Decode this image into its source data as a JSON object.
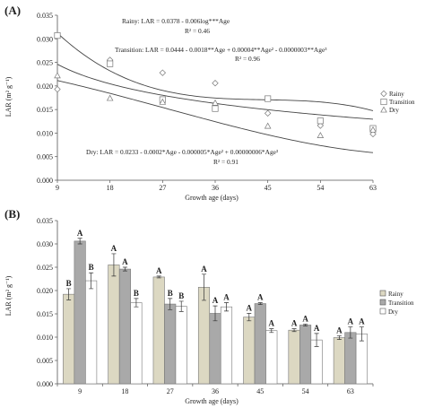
{
  "chart_data": [
    {
      "type": "scatter",
      "panel_label": "(A)",
      "xlabel": "Growth age (days)",
      "ylabel": "LAR (m² g⁻¹)",
      "x_ticks": [
        "9",
        "18",
        "27",
        "36",
        "45",
        "54",
        "63"
      ],
      "y_ticks": [
        "0.000",
        "0.005",
        "0.010",
        "0.015",
        "0.020",
        "0.025",
        "0.030",
        "0.035"
      ],
      "xlim": [
        9,
        63
      ],
      "ylim": [
        0,
        0.035
      ],
      "legend_position": "right",
      "series": [
        {
          "name": "Rainy",
          "marker": "diamond",
          "x": [
            9,
            18,
            27,
            36,
            45,
            54,
            63
          ],
          "values": [
            0.0193,
            0.0255,
            0.0228,
            0.0206,
            0.0142,
            0.0116,
            0.0098
          ]
        },
        {
          "name": "Transition",
          "marker": "square",
          "x": [
            9,
            18,
            27,
            36,
            45,
            54,
            63
          ],
          "values": [
            0.0307,
            0.0247,
            0.0171,
            0.0152,
            0.0173,
            0.0126,
            0.011
          ]
        },
        {
          "name": "Dry",
          "marker": "triangle",
          "x": [
            9,
            18,
            27,
            36,
            45,
            54,
            63
          ],
          "values": [
            0.0222,
            0.0174,
            0.0166,
            0.0164,
            0.0115,
            0.0095,
            0.0107
          ]
        }
      ],
      "equations": {
        "rainy": {
          "line1": "Rainy: LAR = 0.0378 - 0.006log***Age",
          "line2": "R² = 0.46"
        },
        "transition": {
          "line1": "Transition: LAR = 0.0444 - 0.0018**Age + 0.00004**Age² - 0.0000003**Age³",
          "line2": "R² = 0.96"
        },
        "dry": {
          "line1": "Dry: LAR = 0.0233 - 0.0002*Age - 0.000005*Age² + 0.00000006*Age³",
          "line2": "R² = 0.91"
        }
      }
    },
    {
      "type": "bar",
      "panel_label": "(B)",
      "xlabel": "Growth age (days)",
      "ylabel": "LAR (m² g⁻¹)",
      "categories": [
        "9",
        "18",
        "27",
        "36",
        "45",
        "54",
        "63"
      ],
      "y_ticks": [
        "0.000",
        "0.005",
        "0.010",
        "0.015",
        "0.020",
        "0.025",
        "0.030",
        "0.035"
      ],
      "ylim": [
        0,
        0.035
      ],
      "legend_position": "right",
      "series": [
        {
          "name": "Rainy",
          "color": "#dcd8c2",
          "values": [
            0.0192,
            0.0255,
            0.0229,
            0.0207,
            0.0143,
            0.0115,
            0.0099
          ],
          "errors": [
            0.0012,
            0.0024,
            0.0002,
            0.0028,
            0.0008,
            0.0003,
            0.0004
          ],
          "letters": [
            "B",
            "A",
            "A",
            "A",
            "A",
            "A",
            "A"
          ]
        },
        {
          "name": "Transition",
          "color": "#a9a9a9",
          "values": [
            0.0306,
            0.0246,
            0.0171,
            0.0151,
            0.0172,
            0.0126,
            0.011
          ],
          "errors": [
            0.0006,
            0.0004,
            0.0012,
            0.0016,
            0.0002,
            0.0002,
            0.0012
          ],
          "letters": [
            "A",
            "A",
            "B",
            "A",
            "A",
            "A",
            "A"
          ]
        },
        {
          "name": "Dry",
          "color": "#ffffff",
          "values": [
            0.0221,
            0.0174,
            0.0166,
            0.0165,
            0.0114,
            0.0094,
            0.0107
          ],
          "errors": [
            0.0017,
            0.0009,
            0.0011,
            0.0009,
            0.0004,
            0.0014,
            0.0015
          ],
          "letters": [
            "B",
            "B",
            "B",
            "A",
            "A",
            "A",
            "A"
          ]
        }
      ]
    }
  ]
}
